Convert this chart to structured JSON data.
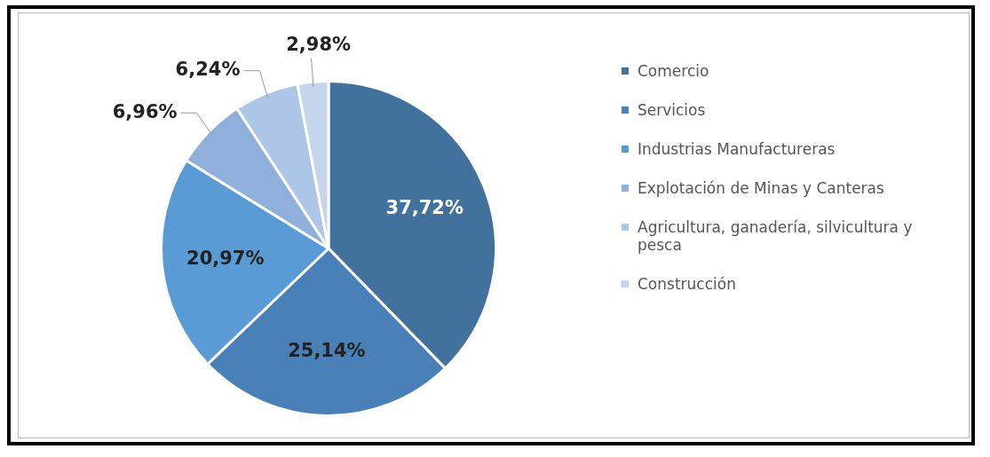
{
  "chart_data": {
    "type": "pie",
    "categories": [
      "Comercio",
      "Servicios",
      "Industrias Manufactureras",
      "Explotación de Minas y Canteras",
      "Agricultura, ganadería, silvicultura y pesca",
      "Construcción"
    ],
    "values": [
      37.72,
      25.14,
      20.97,
      6.96,
      6.24,
      2.98
    ],
    "value_labels": [
      "37,72%",
      "25,14%",
      "20,97%",
      "6,96%",
      "6,24%",
      "2,98%"
    ],
    "colors": [
      "#41719c",
      "#4a80b8",
      "#5b9bd5",
      "#8eb0da",
      "#adc5e6",
      "#c5d6ec"
    ],
    "legend": "right"
  }
}
